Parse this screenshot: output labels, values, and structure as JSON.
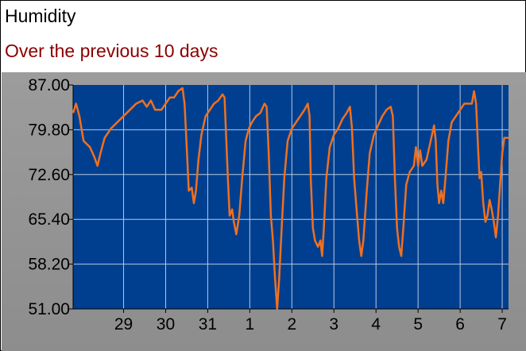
{
  "title": "Humidity",
  "subtitle": "Over the previous 10 days",
  "colors": {
    "plot_background": "#003f8f",
    "line": "#f07020",
    "grid": "#b8c8e0",
    "panel": "#959595",
    "subtitle": "#8b0000"
  },
  "chart_data": {
    "type": "line",
    "title": "Humidity",
    "subtitle": "Over the previous 10 days",
    "xlabel": "",
    "ylabel": "",
    "grid": true,
    "legend": "none",
    "ylim": [
      51.0,
      87.0
    ],
    "xlim": [
      27.8,
      38.15
    ],
    "x_ticks": [
      {
        "x": 29,
        "label": "29"
      },
      {
        "x": 30,
        "label": "30"
      },
      {
        "x": 31,
        "label": "31"
      },
      {
        "x": 32,
        "label": "1"
      },
      {
        "x": 33,
        "label": "2"
      },
      {
        "x": 34,
        "label": "3"
      },
      {
        "x": 35,
        "label": "4"
      },
      {
        "x": 36,
        "label": "5"
      },
      {
        "x": 37,
        "label": "6"
      },
      {
        "x": 38,
        "label": "7"
      }
    ],
    "y_ticks": [
      "87.00",
      "79.80",
      "72.60",
      "65.40",
      "58.20",
      "51.00"
    ],
    "series": [
      {
        "values": [
          [
            27.8,
            82.5
          ],
          [
            27.87,
            84.0
          ],
          [
            27.95,
            82.0
          ],
          [
            28.05,
            78.0
          ],
          [
            28.2,
            77.0
          ],
          [
            28.3,
            75.5
          ],
          [
            28.38,
            74.0
          ],
          [
            28.45,
            76.0
          ],
          [
            28.55,
            78.5
          ],
          [
            28.7,
            80.0
          ],
          [
            28.85,
            81.0
          ],
          [
            29.0,
            82.0
          ],
          [
            29.15,
            83.0
          ],
          [
            29.3,
            84.0
          ],
          [
            29.45,
            84.5
          ],
          [
            29.55,
            83.5
          ],
          [
            29.65,
            84.5
          ],
          [
            29.75,
            83.0
          ],
          [
            29.9,
            83.0
          ],
          [
            30.0,
            84.0
          ],
          [
            30.1,
            85.0
          ],
          [
            30.2,
            85.0
          ],
          [
            30.3,
            86.0
          ],
          [
            30.4,
            86.5
          ],
          [
            30.45,
            84.0
          ],
          [
            30.5,
            77.0
          ],
          [
            30.55,
            70.0
          ],
          [
            30.62,
            70.5
          ],
          [
            30.67,
            68.0
          ],
          [
            30.72,
            70.0
          ],
          [
            30.78,
            75.0
          ],
          [
            30.85,
            79.0
          ],
          [
            30.95,
            82.0
          ],
          [
            31.05,
            83.0
          ],
          [
            31.15,
            84.0
          ],
          [
            31.25,
            84.5
          ],
          [
            31.35,
            85.5
          ],
          [
            31.4,
            85.0
          ],
          [
            31.43,
            80.0
          ],
          [
            31.48,
            72.0
          ],
          [
            31.52,
            66.0
          ],
          [
            31.58,
            67.0
          ],
          [
            31.62,
            65.0
          ],
          [
            31.68,
            63.0
          ],
          [
            31.75,
            66.0
          ],
          [
            31.82,
            72.0
          ],
          [
            31.9,
            78.0
          ],
          [
            31.98,
            80.0
          ],
          [
            32.05,
            81.0
          ],
          [
            32.15,
            82.0
          ],
          [
            32.25,
            82.5
          ],
          [
            32.35,
            84.0
          ],
          [
            32.4,
            83.5
          ],
          [
            32.45,
            76.0
          ],
          [
            32.5,
            66.0
          ],
          [
            32.55,
            62.0
          ],
          [
            32.6,
            56.0
          ],
          [
            32.65,
            51.0
          ],
          [
            32.7,
            56.0
          ],
          [
            32.75,
            63.0
          ],
          [
            32.82,
            72.0
          ],
          [
            32.9,
            78.0
          ],
          [
            33.0,
            80.0
          ],
          [
            33.1,
            81.0
          ],
          [
            33.2,
            82.0
          ],
          [
            33.3,
            83.0
          ],
          [
            33.38,
            84.0
          ],
          [
            33.42,
            82.0
          ],
          [
            33.45,
            72.0
          ],
          [
            33.5,
            64.0
          ],
          [
            33.55,
            62.0
          ],
          [
            33.62,
            61.0
          ],
          [
            33.68,
            62.0
          ],
          [
            33.72,
            59.5
          ],
          [
            33.76,
            64.0
          ],
          [
            33.82,
            72.0
          ],
          [
            33.9,
            77.0
          ],
          [
            34.0,
            79.0
          ],
          [
            34.1,
            80.0
          ],
          [
            34.2,
            81.5
          ],
          [
            34.3,
            82.5
          ],
          [
            34.38,
            83.5
          ],
          [
            34.43,
            80.0
          ],
          [
            34.48,
            72.0
          ],
          [
            34.55,
            66.0
          ],
          [
            34.6,
            62.0
          ],
          [
            34.65,
            59.5
          ],
          [
            34.7,
            62.0
          ],
          [
            34.78,
            70.0
          ],
          [
            34.85,
            76.0
          ],
          [
            34.95,
            79.0
          ],
          [
            35.05,
            80.5
          ],
          [
            35.15,
            82.0
          ],
          [
            35.25,
            83.0
          ],
          [
            35.35,
            83.5
          ],
          [
            35.4,
            82.0
          ],
          [
            35.45,
            72.0
          ],
          [
            35.5,
            64.0
          ],
          [
            35.55,
            61.0
          ],
          [
            35.6,
            59.5
          ],
          [
            35.65,
            64.0
          ],
          [
            35.72,
            71.0
          ],
          [
            35.8,
            73.0
          ],
          [
            35.9,
            74.0
          ],
          [
            35.95,
            77.0
          ],
          [
            36.0,
            74.0
          ],
          [
            36.05,
            76.5
          ],
          [
            36.1,
            74.0
          ],
          [
            36.2,
            75.0
          ],
          [
            36.3,
            78.0
          ],
          [
            36.38,
            80.5
          ],
          [
            36.42,
            78.0
          ],
          [
            36.46,
            71.0
          ],
          [
            36.5,
            68.0
          ],
          [
            36.55,
            70.0
          ],
          [
            36.6,
            68.0
          ],
          [
            36.65,
            72.0
          ],
          [
            36.72,
            78.0
          ],
          [
            36.8,
            81.0
          ],
          [
            36.9,
            82.0
          ],
          [
            37.0,
            83.0
          ],
          [
            37.1,
            84.0
          ],
          [
            37.2,
            84.0
          ],
          [
            37.28,
            84.0
          ],
          [
            37.33,
            86.0
          ],
          [
            37.38,
            84.0
          ],
          [
            37.42,
            78.0
          ],
          [
            37.46,
            72.0
          ],
          [
            37.5,
            73.0
          ],
          [
            37.55,
            68.0
          ],
          [
            37.6,
            65.0
          ],
          [
            37.65,
            66.0
          ],
          [
            37.7,
            68.5
          ],
          [
            37.75,
            67.0
          ],
          [
            37.8,
            65.0
          ],
          [
            37.85,
            62.5
          ],
          [
            37.9,
            66.0
          ],
          [
            37.95,
            71.0
          ],
          [
            38.0,
            76.0
          ],
          [
            38.05,
            78.5
          ],
          [
            38.15,
            78.5
          ]
        ]
      }
    ]
  }
}
